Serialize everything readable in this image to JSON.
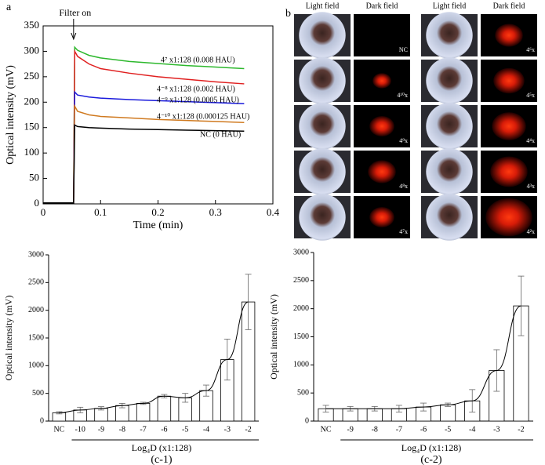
{
  "chart_data": [
    {
      "type": "line",
      "panel_label": "a",
      "xlabel": "Time (min)",
      "ylabel": "Optical intensity (mV)",
      "annotation": "Filter on",
      "xlim": [
        0,
        0.4
      ],
      "xticks": [
        0,
        0.1,
        0.2,
        0.3,
        0.4
      ],
      "ylim": [
        0,
        350
      ],
      "yticks": [
        0,
        50,
        100,
        150,
        200,
        250,
        300,
        350
      ],
      "x": [
        0,
        0.05,
        0.053,
        0.055,
        0.06,
        0.08,
        0.1,
        0.15,
        0.2,
        0.25,
        0.3,
        0.35
      ],
      "series": [
        {
          "name": "4⁷ x1:128 (0.008 HAU)",
          "color": "#2db82d",
          "values": [
            2,
            2,
            2,
            308,
            302,
            292,
            287,
            280,
            276,
            272,
            269,
            266
          ]
        },
        {
          "name": "4⁻⁸ x1:128 (0.002 HAU)",
          "color": "#e02020",
          "values": [
            2,
            2,
            2,
            300,
            290,
            275,
            266,
            257,
            250,
            245,
            240,
            236
          ]
        },
        {
          "name": "4⁻⁹ x1:128 (0.0005 HAU)",
          "color": "#1a1adc",
          "values": [
            2,
            2,
            2,
            220,
            214,
            210,
            208,
            205,
            203,
            201,
            199,
            197
          ]
        },
        {
          "name": "4⁻¹⁰ x1:128 (0.000125 HAU)",
          "color": "#d07a20",
          "values": [
            2,
            2,
            2,
            192,
            182,
            175,
            172,
            169,
            166,
            164,
            162,
            160
          ]
        },
        {
          "name": "NC (0 HAU)",
          "color": "#000000",
          "values": [
            2,
            2,
            2,
            155,
            152,
            150,
            149,
            147,
            146,
            145,
            144,
            143
          ]
        }
      ]
    },
    {
      "type": "bar",
      "caption": "(c-1)",
      "xlabel": "Log₄D (x1:128)",
      "ylabel": "Optical intensity (mV)",
      "color": "#ffffff",
      "categories": [
        "NC",
        "-10",
        "-9",
        "-8",
        "-7",
        "-6",
        "-5",
        "-4",
        "-3",
        "-2"
      ],
      "values": [
        150,
        200,
        230,
        280,
        320,
        450,
        420,
        550,
        1110,
        2150
      ],
      "errors": [
        20,
        50,
        30,
        40,
        20,
        30,
        80,
        100,
        370,
        500
      ],
      "ylim": [
        0,
        3000
      ],
      "yticks": [
        0,
        500,
        1000,
        1500,
        2000,
        2500,
        3000
      ]
    },
    {
      "type": "bar",
      "caption": "(c-2)",
      "xlabel": "Log₄D (x1:128)",
      "ylabel": "Optical intensity (mV)",
      "color": "#ffffff",
      "categories": [
        "NC",
        "-9",
        "-8",
        "-7",
        "-6",
        "-5",
        "-4",
        "-3",
        "-2"
      ],
      "values": [
        220,
        220,
        220,
        220,
        250,
        290,
        360,
        900,
        2050
      ],
      "errors": [
        60,
        40,
        40,
        60,
        70,
        30,
        200,
        370,
        530
      ],
      "ylim": [
        0,
        3000
      ],
      "yticks": [
        0,
        500,
        1000,
        1500,
        2000,
        2500,
        3000
      ]
    }
  ],
  "panel_b": {
    "label": "b",
    "headers": [
      "Light field",
      "Dark field",
      "Light field",
      "Dark field"
    ],
    "left_labels": [
      "NC",
      "4¹⁰x",
      "4⁹x",
      "4⁸x",
      "4⁷x"
    ],
    "right_labels": [
      "4⁶x",
      "4⁵x",
      "4⁴x",
      "4³x",
      "4²x"
    ]
  }
}
